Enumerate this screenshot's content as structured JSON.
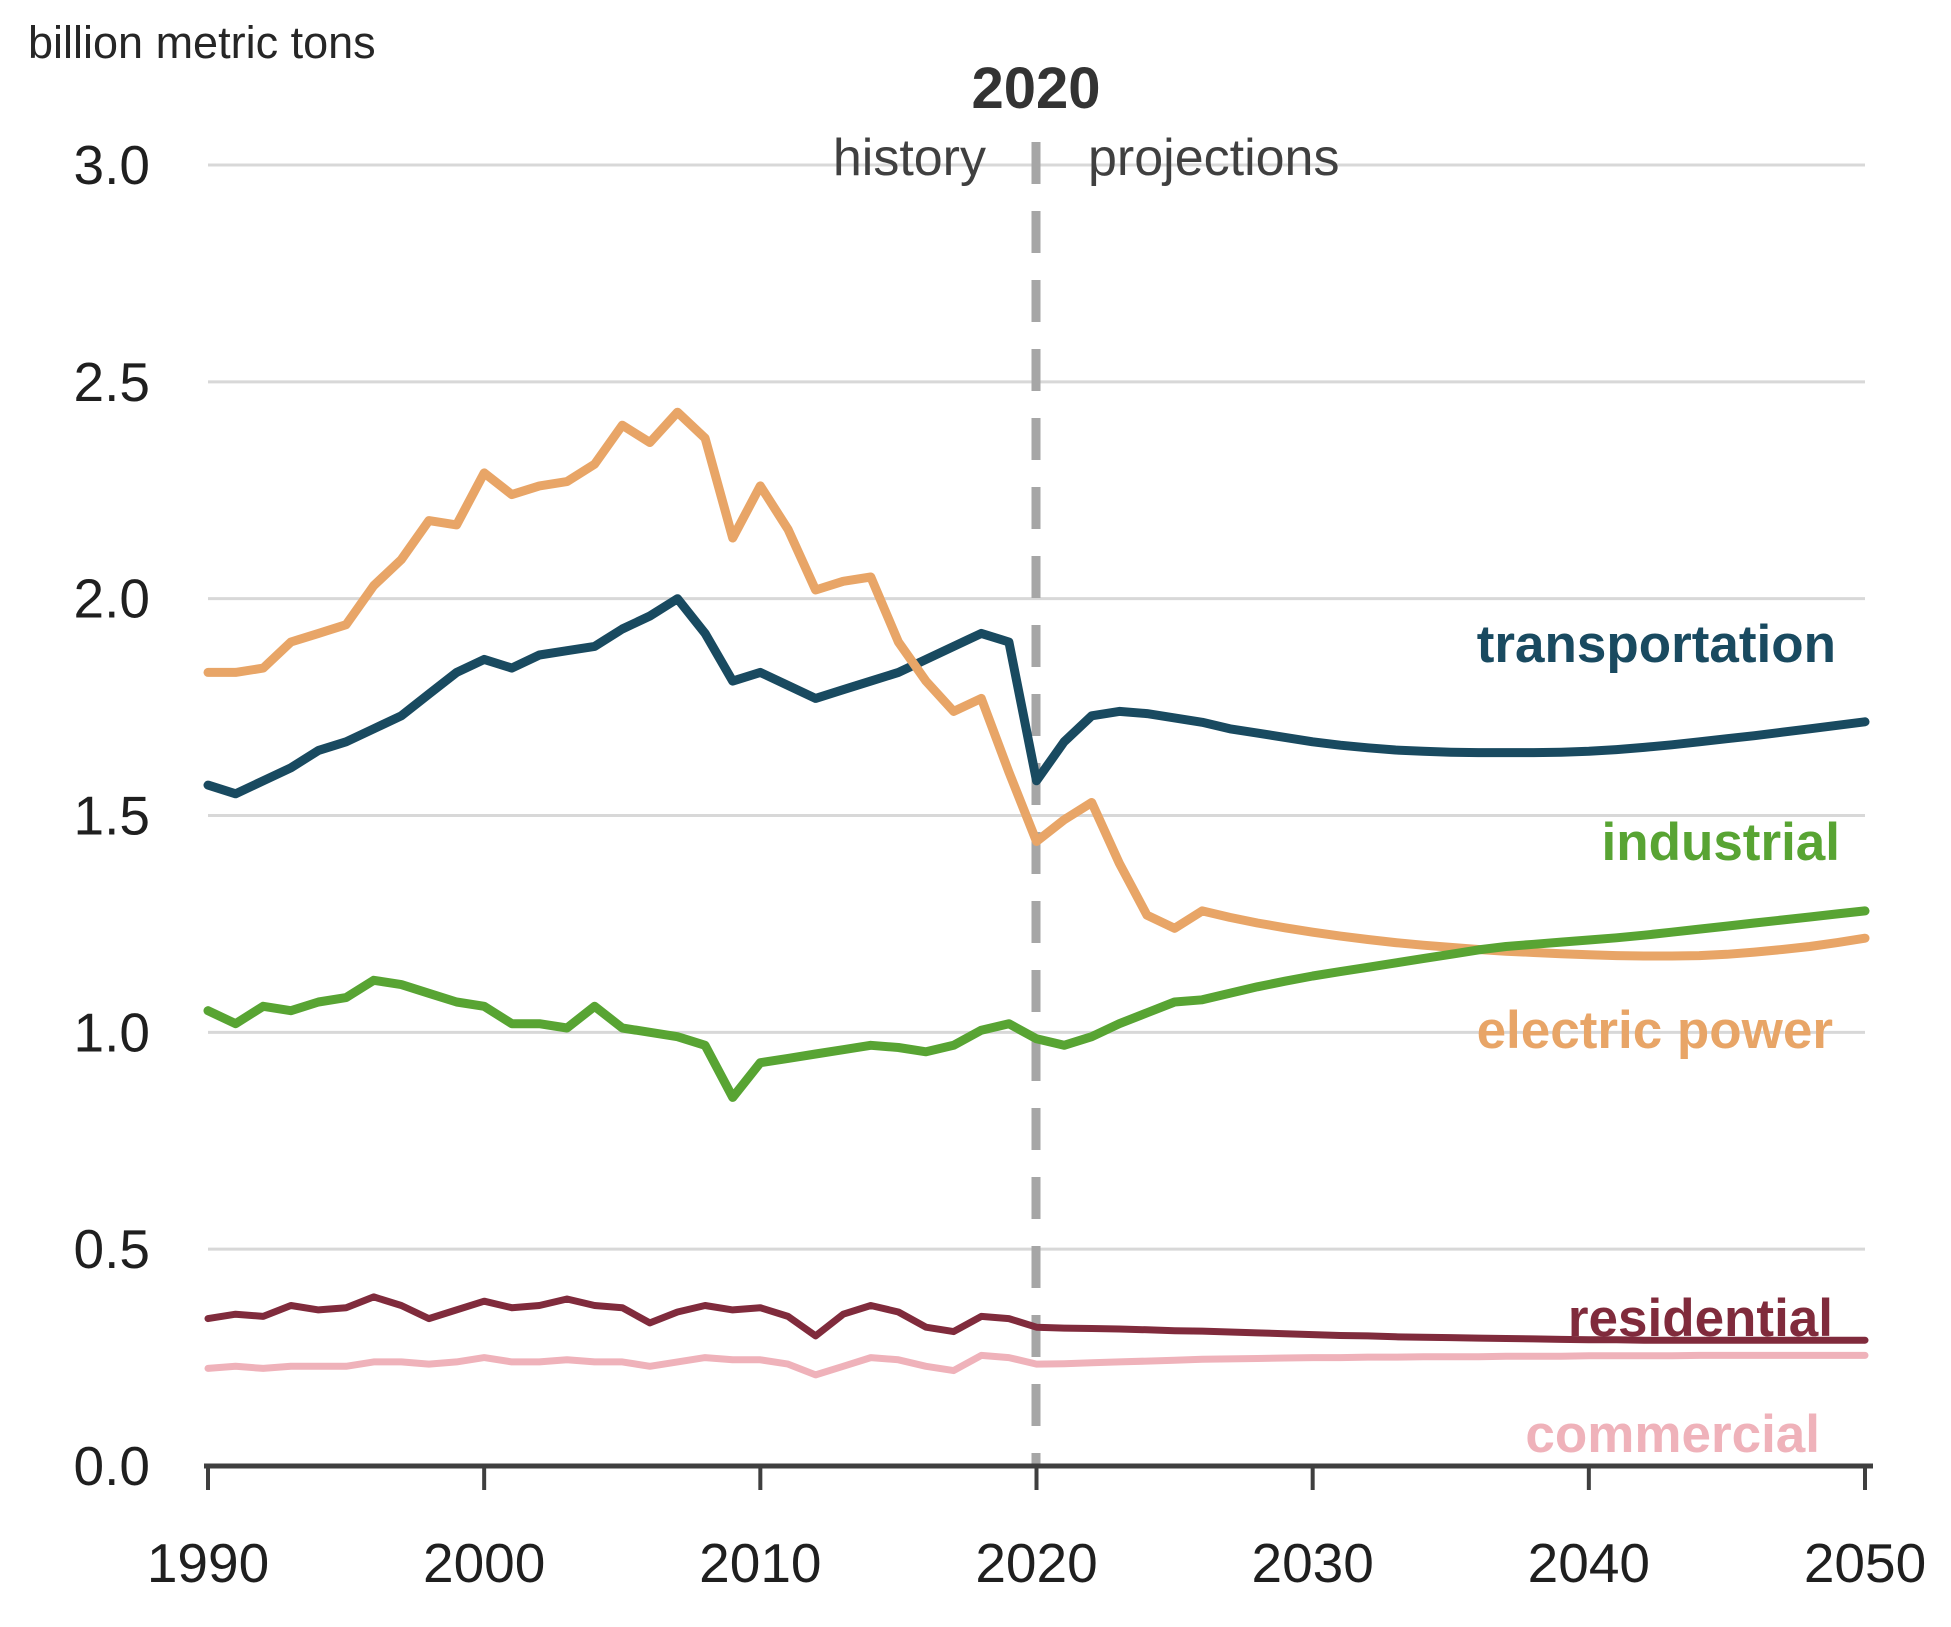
{
  "header": {
    "units_label": "billion metric tons",
    "divider_year": "2020",
    "history_label": "history",
    "projections_label": "projections"
  },
  "colors": {
    "grid": "#d8d8d8",
    "axis": "#3f3f3f",
    "divider_dash": "#a6a6a6",
    "tick_text": "#1f1f1f",
    "header_text": "#404040"
  },
  "chart_data": {
    "type": "line",
    "title": "",
    "xlabel": "",
    "ylabel": "billion metric tons",
    "ylim": [
      0.0,
      3.0
    ],
    "ytick_step": 0.5,
    "xticks": [
      1990,
      2000,
      2010,
      2020,
      2030,
      2040,
      2050
    ],
    "divider_x": 2020,
    "grid": true,
    "legend_position": "inline-right",
    "years": [
      1990,
      1991,
      1992,
      1993,
      1994,
      1995,
      1996,
      1997,
      1998,
      1999,
      2000,
      2001,
      2002,
      2003,
      2004,
      2005,
      2006,
      2007,
      2008,
      2009,
      2010,
      2011,
      2012,
      2013,
      2014,
      2015,
      2016,
      2017,
      2018,
      2019,
      2020,
      2021,
      2022,
      2023,
      2024,
      2025,
      2026,
      2027,
      2028,
      2029,
      2030,
      2031,
      2032,
      2033,
      2034,
      2035,
      2036,
      2037,
      2038,
      2039,
      2040,
      2041,
      2042,
      2043,
      2044,
      2045,
      2046,
      2047,
      2048,
      2049,
      2050
    ],
    "series": [
      {
        "name": "transportation",
        "label": "transportation",
        "color": "#194a60",
        "stroke_width": 9,
        "values": [
          1.57,
          1.55,
          1.58,
          1.61,
          1.65,
          1.67,
          1.7,
          1.73,
          1.78,
          1.83,
          1.86,
          1.84,
          1.87,
          1.88,
          1.89,
          1.93,
          1.96,
          2.0,
          1.92,
          1.81,
          1.83,
          1.8,
          1.77,
          1.79,
          1.81,
          1.83,
          1.86,
          1.89,
          1.92,
          1.9,
          1.58,
          1.67,
          1.73,
          1.74,
          1.735,
          1.725,
          1.715,
          1.7,
          1.69,
          1.68,
          1.67,
          1.662,
          1.656,
          1.651,
          1.648,
          1.646,
          1.645,
          1.645,
          1.645,
          1.646,
          1.648,
          1.652,
          1.657,
          1.663,
          1.67,
          1.677,
          1.684,
          1.692,
          1.7,
          1.708,
          1.716
        ]
      },
      {
        "name": "electric-power",
        "label": "electric power",
        "color": "#e8a567",
        "stroke_width": 9,
        "values": [
          1.83,
          1.83,
          1.84,
          1.9,
          1.92,
          1.94,
          2.03,
          2.09,
          2.18,
          2.17,
          2.29,
          2.24,
          2.26,
          2.27,
          2.31,
          2.4,
          2.36,
          2.43,
          2.37,
          2.14,
          2.26,
          2.16,
          2.02,
          2.04,
          2.05,
          1.9,
          1.81,
          1.74,
          1.77,
          1.6,
          1.44,
          1.49,
          1.53,
          1.39,
          1.27,
          1.24,
          1.28,
          1.265,
          1.252,
          1.241,
          1.231,
          1.222,
          1.214,
          1.207,
          1.201,
          1.196,
          1.191,
          1.187,
          1.184,
          1.181,
          1.179,
          1.177,
          1.176,
          1.176,
          1.177,
          1.18,
          1.185,
          1.191,
          1.198,
          1.207,
          1.217
        ]
      },
      {
        "name": "industrial",
        "label": "industrial",
        "color": "#58a433",
        "stroke_width": 9,
        "values": [
          1.05,
          1.02,
          1.06,
          1.05,
          1.07,
          1.08,
          1.12,
          1.11,
          1.09,
          1.07,
          1.06,
          1.02,
          1.02,
          1.01,
          1.06,
          1.01,
          1.0,
          0.99,
          0.97,
          0.85,
          0.93,
          0.94,
          0.95,
          0.96,
          0.97,
          0.965,
          0.955,
          0.97,
          1.005,
          1.02,
          0.985,
          0.97,
          0.99,
          1.02,
          1.045,
          1.07,
          1.075,
          1.09,
          1.105,
          1.118,
          1.13,
          1.14,
          1.15,
          1.16,
          1.17,
          1.18,
          1.19,
          1.198,
          1.203,
          1.208,
          1.213,
          1.218,
          1.224,
          1.231,
          1.238,
          1.245,
          1.252,
          1.259,
          1.266,
          1.273,
          1.28
        ]
      },
      {
        "name": "residential",
        "label": "residential",
        "color": "#802b3c",
        "stroke_width": 7,
        "values": [
          0.34,
          0.35,
          0.345,
          0.37,
          0.36,
          0.365,
          0.39,
          0.37,
          0.34,
          0.36,
          0.38,
          0.365,
          0.37,
          0.385,
          0.37,
          0.365,
          0.33,
          0.355,
          0.37,
          0.36,
          0.365,
          0.345,
          0.3,
          0.35,
          0.37,
          0.355,
          0.32,
          0.31,
          0.345,
          0.34,
          0.32,
          0.318,
          0.317,
          0.316,
          0.314,
          0.312,
          0.311,
          0.309,
          0.307,
          0.305,
          0.303,
          0.301,
          0.3,
          0.298,
          0.297,
          0.296,
          0.295,
          0.294,
          0.293,
          0.292,
          0.291,
          0.291,
          0.29,
          0.29,
          0.29,
          0.29,
          0.29,
          0.29,
          0.29,
          0.29,
          0.29
        ]
      },
      {
        "name": "commercial",
        "label": "commercial",
        "color": "#efb2ba",
        "stroke_width": 7,
        "values": [
          0.225,
          0.23,
          0.225,
          0.23,
          0.23,
          0.23,
          0.24,
          0.24,
          0.235,
          0.24,
          0.25,
          0.24,
          0.24,
          0.245,
          0.24,
          0.24,
          0.23,
          0.24,
          0.25,
          0.245,
          0.245,
          0.235,
          0.21,
          0.23,
          0.25,
          0.245,
          0.23,
          0.22,
          0.255,
          0.25,
          0.235,
          0.236,
          0.238,
          0.24,
          0.242,
          0.244,
          0.246,
          0.247,
          0.248,
          0.249,
          0.25,
          0.25,
          0.251,
          0.251,
          0.252,
          0.252,
          0.252,
          0.253,
          0.253,
          0.253,
          0.254,
          0.254,
          0.254,
          0.254,
          0.255,
          0.255,
          0.255,
          0.255,
          0.255,
          0.255,
          0.255
        ]
      }
    ]
  }
}
